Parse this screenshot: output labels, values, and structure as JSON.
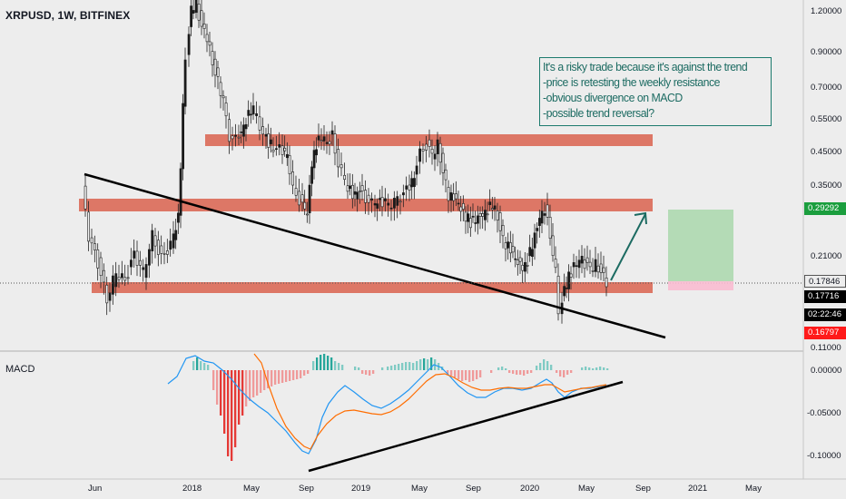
{
  "header": {
    "title": "XRPUSD, 1W, BITFINEX"
  },
  "indicator": {
    "label": "MACD"
  },
  "note": {
    "lines": [
      "It's a risky trade because it's against the trend",
      "-price is retesting the weekly resistance",
      "-obvious divergence on MACD",
      "-possible trend reversal?"
    ]
  },
  "price_axis": {
    "ticks": [
      "1.20000",
      "0.90000",
      "0.70000",
      "0.55000",
      "0.45000",
      "0.35000",
      "0.21000",
      "0.11000"
    ],
    "badges": {
      "target": "0.29292",
      "last": "0.17846",
      "current": "0.17716",
      "countdown": "02:22:46",
      "low": "0.16797"
    }
  },
  "macd_axis": {
    "ticks": [
      "0.00000",
      "-0.05000",
      "-0.10000"
    ]
  },
  "time_axis": {
    "ticks": [
      "Jun",
      "2018",
      "May",
      "Sep",
      "2019",
      "May",
      "Sep",
      "2020",
      "May",
      "Sep",
      "2021",
      "May"
    ]
  },
  "colors": {
    "background": "#ededed",
    "zone": "#d9624e",
    "up_candle": "#26a69a",
    "down_candle": "#ef5350",
    "macd_line": "#2196f3",
    "signal_line": "#ff6d00",
    "target_box": "#a5d6a7",
    "stop_box": "#f8bbd0",
    "target_badge": "#1b9e3e",
    "current_badge": "#000000",
    "low_badge": "#ff1a1a",
    "note_text": "#1c6b62"
  }
}
